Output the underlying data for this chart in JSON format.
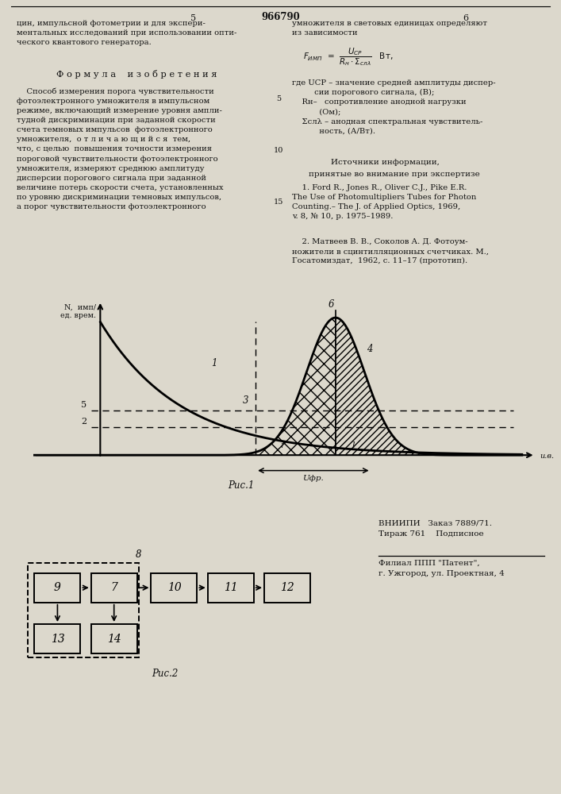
{
  "page_bg": "#dcd8cc",
  "text_color": "#111111",
  "fig_width": 7.07,
  "fig_height": 10.0,
  "dpi": 100,
  "header_5": "5",
  "header_num": "966790",
  "header_6": "6",
  "left_top": "цин, импульсной фотометрии и для экспери-\nментальных исследований при использовании опти-\nческого квантового генератора.",
  "formula_title": "Ф о р м у л а    и з о б р е т е н и я",
  "formula_body_lines": [
    "    Способ измерения порога чувствительности",
    "фотоэлектронного умножителя в импульсном",
    "режиме, включающий измерение уровня ампли-",
    "тудной дискриминации при заданной скорости",
    "счета темновых импульсов  фотоэлектронного",
    "умножителя,  о т л и ч а ю щ и й с я  тем,",
    "что, с целью  повышения точности измерения",
    "пороговой чувствительности фотоэлектронного",
    "умножителя, измеряют среднюю амплитуду",
    "дисперсии порогового сигнала при заданной",
    "величине потерь скорости счета, установленных",
    "по уровню дискриминации темновых импульсов,",
    "а порог чувствительности фотоэлектронного"
  ],
  "right_top_lines": [
    "умножителя в световых единицах определяют",
    "из зависимости"
  ],
  "right_notes_lines": [
    "где UСР – значение средней амплитуды диспер-",
    "         сии порогового сигнала, (В);",
    "    Rн–   сопротивление анодной нагрузки",
    "           (Ом);",
    "    Σслλ – анодная спектральная чувствитель-",
    "           ность, (А/Вт)."
  ],
  "line5_label": "5",
  "line10_label": "10",
  "line15_label": "15",
  "src_title1": "Источники информации,",
  "src_title2": "принятые во внимание при экспертизе",
  "src1_lines": [
    "    1. Ford R., Jones R., Oliver C.J., Pike E.R.",
    "The Use of Photomultipliers Tubes for Photon",
    "Counting.– The J. of Applied Optics, 1969,",
    "v. 8, № 10, p. 1975–1989."
  ],
  "src2_lines": [
    "    2. Матвеев В. В., Соколов А. Д. Фотоум-",
    "ножители в сцинтилляционных счетчиках. М.,",
    "Госатомиздат,  1962, с. 11–17 (прототип)."
  ],
  "fig1_caption": "Рис.1",
  "fig2_caption": "Рис.2",
  "vniipii_text": "ВНИИПИ   Заказ 7889/71.\nТираж 761    Подписное",
  "filial_text": "Филиал ППП \"Патент\",\nг. Ужгород, ул. Проектная, 4"
}
